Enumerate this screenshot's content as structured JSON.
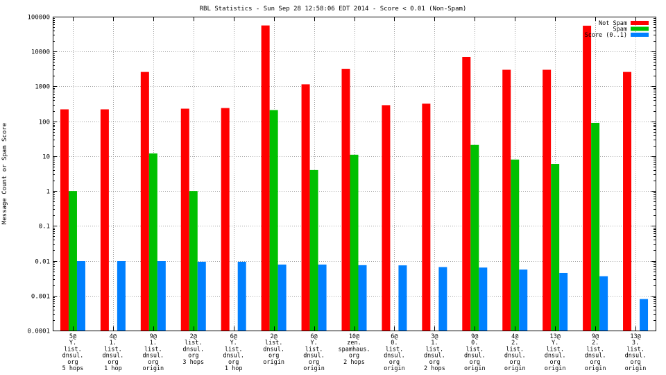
{
  "chart_data": {
    "type": "bar",
    "title": "RBL Statistics - Sun Sep 28 12:58:06 EDT 2014 - Score < 0.01 (Non-Spam)",
    "xlabel": "",
    "ylabel": "Message Count or Spam Score",
    "yscale": "log",
    "ylim": [
      0.0001,
      100000
    ],
    "yticks": [
      "0.0001",
      "0.001",
      "0.01",
      "0.1",
      "1",
      "10",
      "100",
      "1000",
      "10000",
      "100000"
    ],
    "grid": true,
    "legend_position": "top-right",
    "categories": [
      [
        "5@",
        "Y.",
        "list.",
        "dnsul.",
        "org",
        "5 hops"
      ],
      [
        "4@",
        "1.",
        "list.",
        "dnsul.",
        "org",
        "1 hop"
      ],
      [
        "9@",
        "1.",
        "list.",
        "dnsul.",
        "org",
        "origin"
      ],
      [
        "2@",
        "list.",
        "dnsul.",
        "org",
        "3 hops"
      ],
      [
        "6@",
        "Y.",
        "list.",
        "dnsul.",
        "org",
        "1 hop"
      ],
      [
        "2@",
        "list.",
        "dnsul.",
        "org",
        "origin"
      ],
      [
        "6@",
        "Y.",
        "list.",
        "dnsul.",
        "org",
        "origin"
      ],
      [
        "10@",
        "zen.",
        "spamhaus.",
        "org",
        "2 hops"
      ],
      [
        "6@",
        "0.",
        "list.",
        "dnsul.",
        "org",
        "origin"
      ],
      [
        "3@",
        "1.",
        "list.",
        "dnsul.",
        "org",
        "2 hops"
      ],
      [
        "9@",
        "0.",
        "list.",
        "dnsul.",
        "org",
        "origin"
      ],
      [
        "4@",
        "2.",
        "list.",
        "dnsul.",
        "org",
        "origin"
      ],
      [
        "13@",
        "Y.",
        "list.",
        "dnsul.",
        "org",
        "origin"
      ],
      [
        "9@",
        "2.",
        "list.",
        "dnsul.",
        "org",
        "origin"
      ],
      [
        "13@",
        "3.",
        "list.",
        "dnsul.",
        "org",
        "origin"
      ]
    ],
    "series": [
      {
        "name": "Not Spam",
        "color": "#ff0000",
        "values": [
          220,
          220,
          2600,
          230,
          240,
          56000,
          1150,
          3200,
          290,
          320,
          7000,
          3000,
          3000,
          55000,
          2600
        ]
      },
      {
        "name": "Spam",
        "color": "#00c000",
        "values": [
          1,
          null,
          12,
          1,
          null,
          210,
          4,
          11,
          null,
          null,
          21,
          8,
          6,
          90,
          null
        ]
      },
      {
        "name": "Score (0..1)",
        "color": "#0080ff",
        "values": [
          0.0098,
          0.0098,
          0.0098,
          0.0094,
          0.0094,
          0.0078,
          0.0078,
          0.0075,
          0.0074,
          0.0066,
          0.0064,
          0.0056,
          0.0045,
          0.0036,
          0.0008
        ]
      }
    ]
  }
}
